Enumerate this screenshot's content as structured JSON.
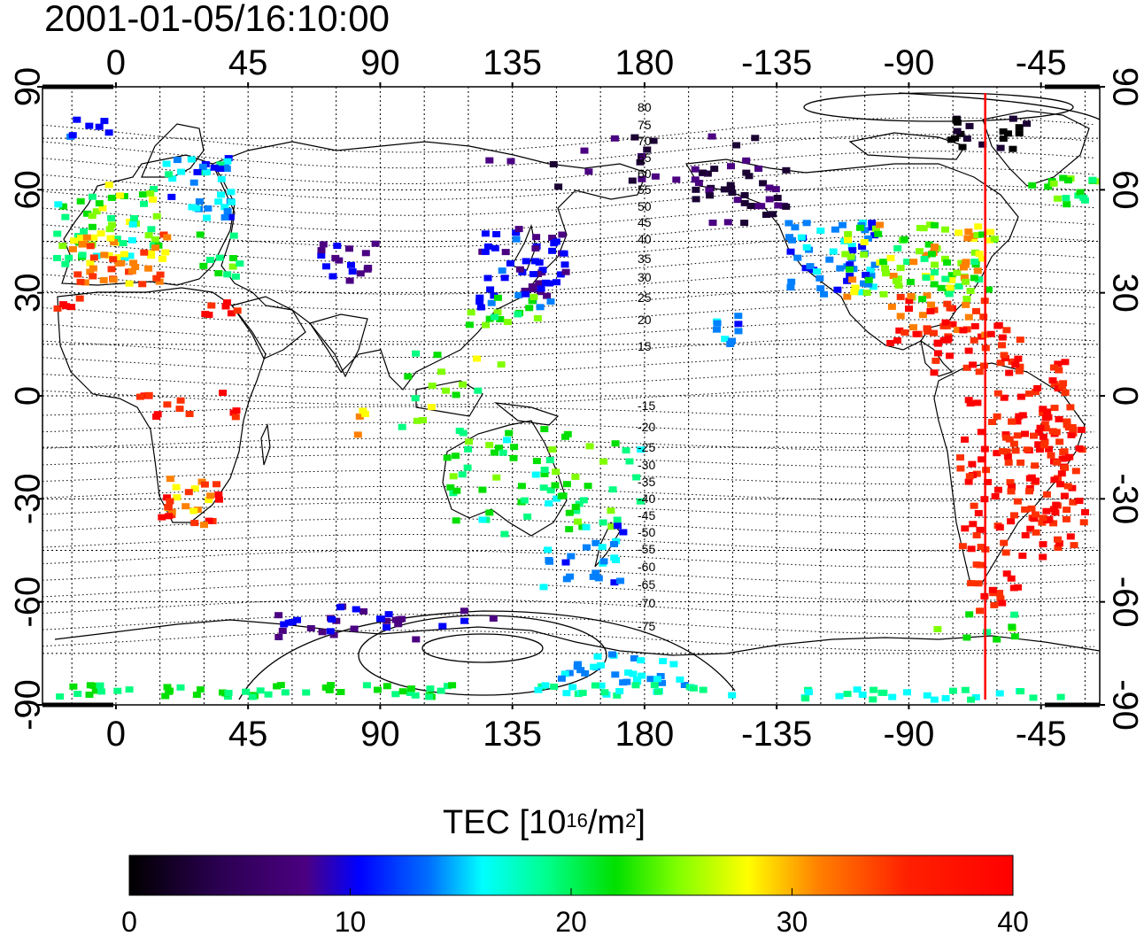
{
  "timestamp": "2001-01-05/16:10:00",
  "map": {
    "lon_ticks": [
      "0",
      "45",
      "90",
      "135",
      "180",
      "-135",
      "-90",
      "-45"
    ],
    "lat_ticks": [
      "90",
      "60",
      "30",
      "0",
      "-30",
      "-60",
      "-90"
    ],
    "mlat_labels": [
      "80",
      "75",
      "70",
      "65",
      "60",
      "55",
      "50",
      "45",
      "40",
      "35",
      "30",
      "25",
      "20",
      "15",
      "-15",
      "-20",
      "-25",
      "-30",
      "-35",
      "-40",
      "-45",
      "-50",
      "-55",
      "-60",
      "-65",
      "-70",
      "-75"
    ],
    "marker_longitude": -64,
    "marker_color": "#ff0000"
  },
  "colorbar": {
    "title_prefix": "TEC  [10",
    "title_exp1": "16",
    "title_mid": "/m",
    "title_exp2": "2",
    "title_suffix": "]",
    "range": [
      0,
      40
    ],
    "tick_labels": [
      "0",
      "10",
      "20",
      "30",
      "40"
    ],
    "colors": [
      "#000000",
      "#1a0033",
      "#4b0082",
      "#0000ff",
      "#0080ff",
      "#00ffff",
      "#00ff80",
      "#00e000",
      "#80ff00",
      "#ffff00",
      "#ff8000",
      "#ff3000",
      "#ff0000"
    ]
  }
}
